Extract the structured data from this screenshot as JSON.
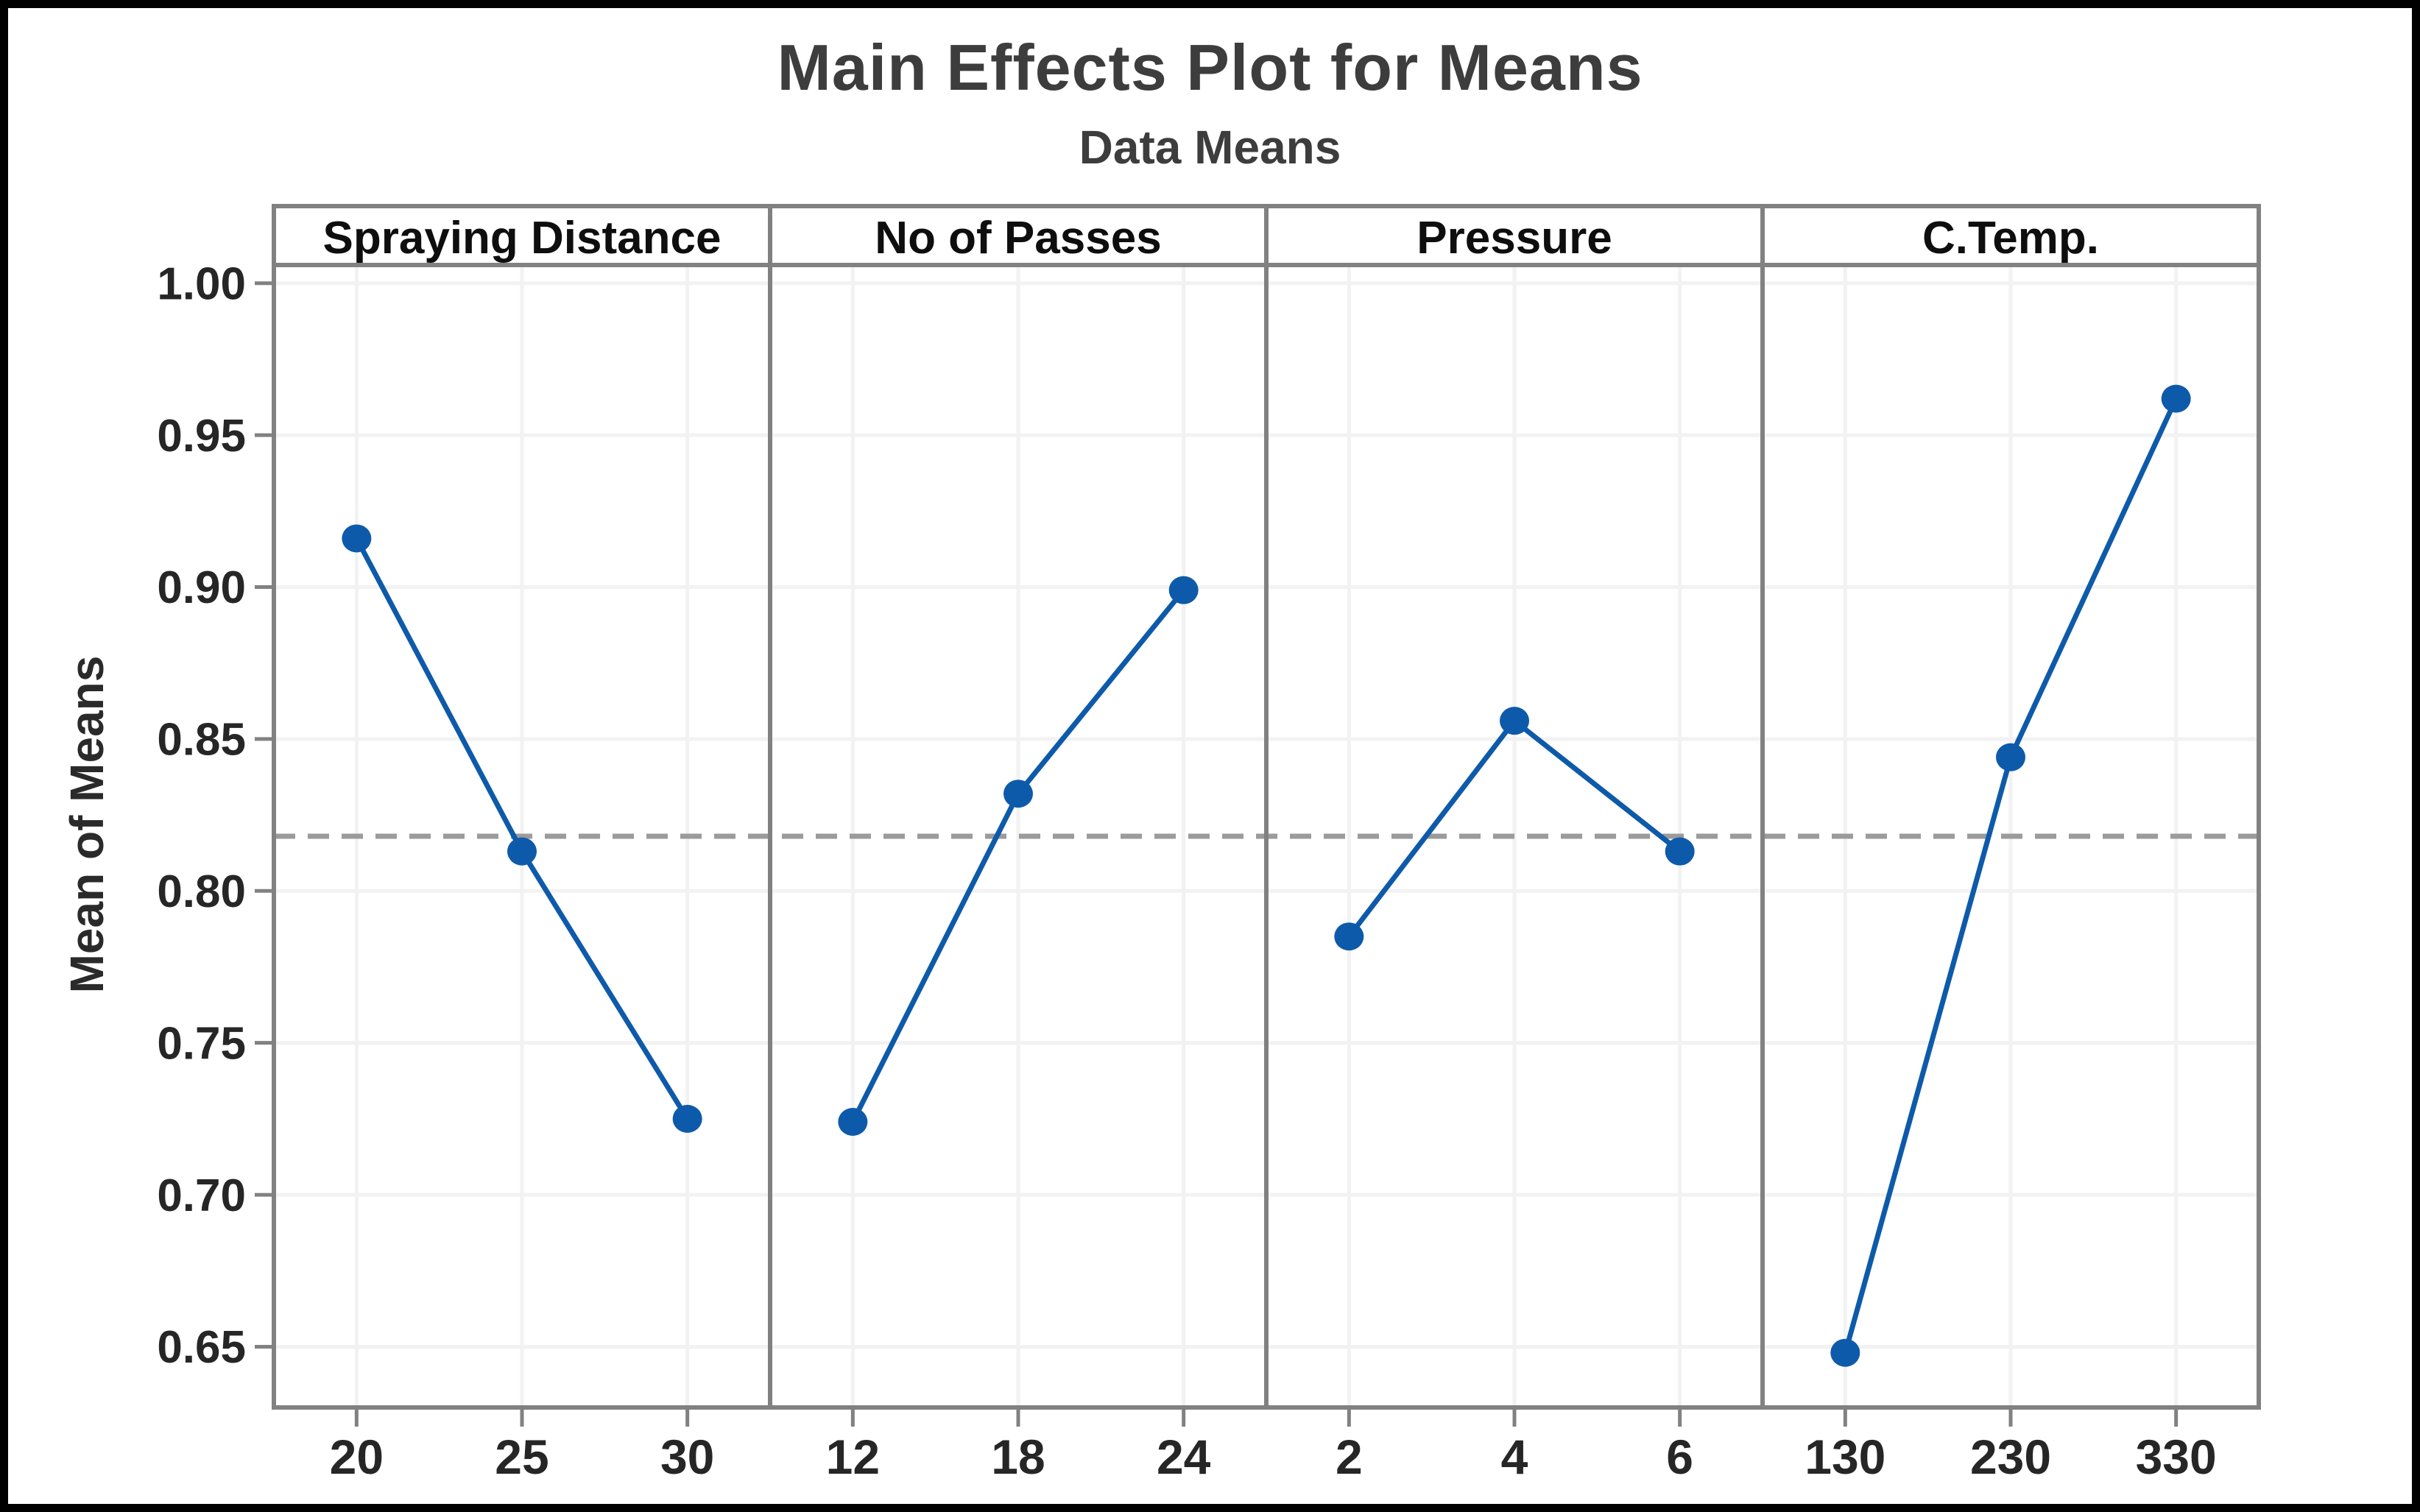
{
  "chart_data": {
    "type": "line",
    "title": "Main Effects Plot for Means",
    "subtitle": "Data Means",
    "ylabel": "Mean of Means",
    "ylim": [
      0.63,
      1.006
    ],
    "yticks": [
      "1.00",
      "0.95",
      "0.90",
      "0.85",
      "0.80",
      "0.75",
      "0.70",
      "0.65"
    ],
    "reference_mean": 0.818,
    "grid": true,
    "legend": "none",
    "panels": [
      {
        "label": "Spraying Distance",
        "categories": [
          "20",
          "25",
          "30"
        ],
        "values": [
          0.916,
          0.813,
          0.725
        ]
      },
      {
        "label": "No of Passes",
        "categories": [
          "12",
          "18",
          "24"
        ],
        "values": [
          0.724,
          0.832,
          0.899
        ]
      },
      {
        "label": "Pressure",
        "categories": [
          "2",
          "4",
          "6"
        ],
        "values": [
          0.785,
          0.856,
          0.813
        ]
      },
      {
        "label": "C.Temp.",
        "categories": [
          "130",
          "230",
          "330"
        ],
        "values": [
          0.648,
          0.844,
          0.962
        ]
      }
    ],
    "colors": {
      "series": "#0E5AAA",
      "marker": "#0E5AAA",
      "reference_line": "#9B9B9B",
      "panel_border": "#818181",
      "gridline": "#F2F2F2",
      "tick_mark": "#818181",
      "tick_text": "#262626",
      "panel_label_text": "#0E0E0E",
      "title_text": "#3D3D3D",
      "frame": "#000000",
      "background": "#FFFFFF"
    }
  }
}
